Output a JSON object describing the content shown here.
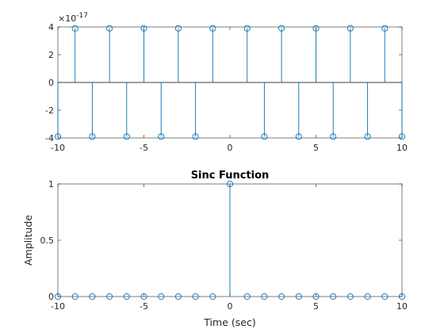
{
  "figure": {
    "background": "#ffffff",
    "axes_color": "#262626",
    "stem_color": "#0072bd"
  },
  "chart_data": [
    {
      "type": "stem",
      "title": "",
      "xlabel": "",
      "ylabel": "",
      "exponent_label": "×10",
      "exponent_power": "-17",
      "xlim": [
        -10,
        10
      ],
      "ylim": [
        -4,
        4
      ],
      "xticks": [
        "-10",
        "-5",
        "0",
        "5",
        "10"
      ],
      "yticks": [
        "-4",
        "-2",
        "0",
        "2",
        "4"
      ],
      "baseline": true,
      "marker": "circle",
      "grid": false,
      "x": [
        -10,
        -9,
        -8,
        -7,
        -6,
        -5,
        -4,
        -3,
        -2,
        -1,
        1,
        2,
        3,
        4,
        5,
        6,
        7,
        8,
        9,
        10
      ],
      "y": [
        -3.9,
        3.9,
        -3.9,
        3.9,
        -3.9,
        3.9,
        -3.9,
        3.9,
        -3.9,
        3.9,
        3.9,
        -3.9,
        3.9,
        -3.9,
        3.9,
        -3.9,
        3.9,
        -3.9,
        3.9,
        -3.9
      ]
    },
    {
      "type": "stem",
      "title": "Sinc Function",
      "xlabel": "Time (sec)",
      "ylabel": "Amplitude",
      "xlim": [
        -10,
        10
      ],
      "ylim": [
        0,
        1
      ],
      "xticks": [
        "-10",
        "-5",
        "0",
        "5",
        "10"
      ],
      "yticks": [
        "0",
        "0.5",
        "1"
      ],
      "baseline": false,
      "marker": "circle",
      "grid": false,
      "x": [
        -10,
        -9,
        -8,
        -7,
        -6,
        -5,
        -4,
        -3,
        -2,
        -1,
        0,
        1,
        2,
        3,
        4,
        5,
        6,
        7,
        8,
        9,
        10
      ],
      "y": [
        0,
        0,
        0,
        0,
        0,
        0,
        0,
        0,
        0,
        0,
        1,
        0,
        0,
        0,
        0,
        0,
        0,
        0,
        0,
        0,
        0
      ]
    }
  ]
}
